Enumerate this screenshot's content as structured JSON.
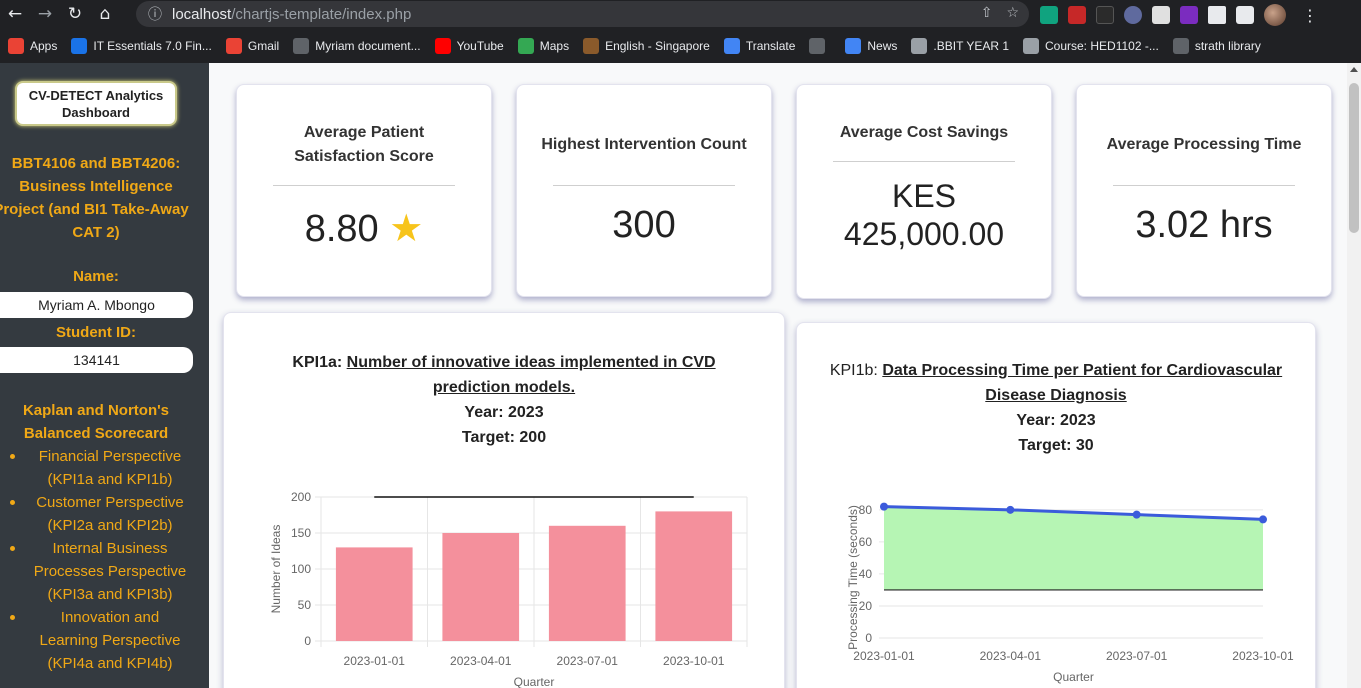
{
  "browser": {
    "url_host": "localhost",
    "url_path": "/chartjs-template/index.php",
    "bookmarks": [
      {
        "label": "Apps",
        "icon": "apps-grid-icon",
        "color": "#ea4335"
      },
      {
        "label": "IT Essentials 7.0 Fin...",
        "icon": "netacad-icon",
        "color": "#1a73e8"
      },
      {
        "label": "Gmail",
        "icon": "gmail-icon",
        "color": "#ea4335"
      },
      {
        "label": "Myriam document...",
        "icon": "globe-icon",
        "color": "#5f6368"
      },
      {
        "label": "YouTube",
        "icon": "youtube-icon",
        "color": "#ff0000"
      },
      {
        "label": "Maps",
        "icon": "maps-icon",
        "color": "#34a853"
      },
      {
        "label": "English - Singapore",
        "icon": "globe-icon",
        "color": "#8a5a2b"
      },
      {
        "label": "Translate",
        "icon": "translate-icon",
        "color": "#4285f4"
      },
      {
        "label": "",
        "icon": "globe-icon",
        "color": "#5f6368"
      },
      {
        "label": "News",
        "icon": "news-icon",
        "color": "#4285f4"
      },
      {
        "label": ".BBIT YEAR 1",
        "icon": "bookmark-icon",
        "color": "#9aa0a6"
      },
      {
        "label": "Course: HED1102 -...",
        "icon": "bookmark-icon",
        "color": "#9aa0a6"
      },
      {
        "label": "strath library",
        "icon": "globe-icon",
        "color": "#5f6368"
      }
    ]
  },
  "sidebar": {
    "brand": "CV-DETECT Analytics Dashboard",
    "project": "BBT4106 and BBT4206: Business Intelligence Project (and BI1 Take-Away CAT 2)",
    "project_lines": [
      "BBT4106 and BBT4206:",
      "Business Intelligence",
      "Project (and BI1 Take-Away",
      "CAT 2)"
    ],
    "name_label": "Name:",
    "name_value": "Myriam A. Mbongo",
    "student_id_label": "Student ID:",
    "student_id_value": "134141",
    "framework_title_lines": [
      "Kaplan and Norton's",
      "Balanced Scorecard"
    ],
    "perspectives": [
      "Financial Perspective (KPI1a and KPI1b)",
      "Customer Perspective (KPI2a and KPI2b)",
      "Internal Business Processes Perspective (KPI3a and KPI3b)",
      "Innovation and Learning Perspective (KPI4a and KPI4b)"
    ]
  },
  "kpi_cards": [
    {
      "title": "Average Patient Satisfaction Score",
      "value": "8.80",
      "icon": "star-icon"
    },
    {
      "title": "Highest Intervention Count",
      "value": "300"
    },
    {
      "title": "Average Cost Savings",
      "value_lines": [
        "KES",
        "425,000.00"
      ]
    },
    {
      "title": "Average Processing Time",
      "value": "3.02 hrs"
    }
  ],
  "charts": [
    {
      "kpi": "KPI1a:",
      "title": "Number of innovative ideas implemented in CVD prediction models.",
      "title_lines": [
        "Number of innovative ideas implemented in CVD",
        "prediction models."
      ],
      "year": "Year: 2023",
      "target_text": "Target: 200"
    },
    {
      "kpi": "KPI1b:",
      "title": "Data Processing Time per Patient for Cardiovascular Disease Diagnosis",
      "title_lines": [
        "Data Processing Time per Patient for Cardiovascular",
        "Disease Diagnosis"
      ],
      "year": "Year: 2023",
      "target_text": "Target: 30"
    }
  ],
  "chart_data": [
    {
      "type": "bar",
      "categories": [
        "2023-01-01",
        "2023-04-01",
        "2023-07-01",
        "2023-10-01"
      ],
      "values": [
        130,
        150,
        160,
        180
      ],
      "target": 200,
      "xlabel": "Quarter",
      "ylabel": "Number of Ideas",
      "ylim": [
        0,
        200
      ],
      "yticks": [
        0,
        50,
        100,
        150,
        200
      ],
      "bar_color": "#f4909c",
      "grid": true
    },
    {
      "type": "area",
      "categories": [
        "2023-01-01",
        "2023-04-01",
        "2023-07-01",
        "2023-10-01"
      ],
      "values": [
        82,
        80,
        77,
        74
      ],
      "target": 30,
      "xlabel": "Quarter",
      "ylabel": "Processing Time (seconds)",
      "ylim": [
        0,
        88
      ],
      "yticks": [
        0,
        20,
        40,
        60,
        80
      ],
      "line_color": "#3b5bdb",
      "fill_color": "#b6f5b4",
      "grid": true
    }
  ]
}
